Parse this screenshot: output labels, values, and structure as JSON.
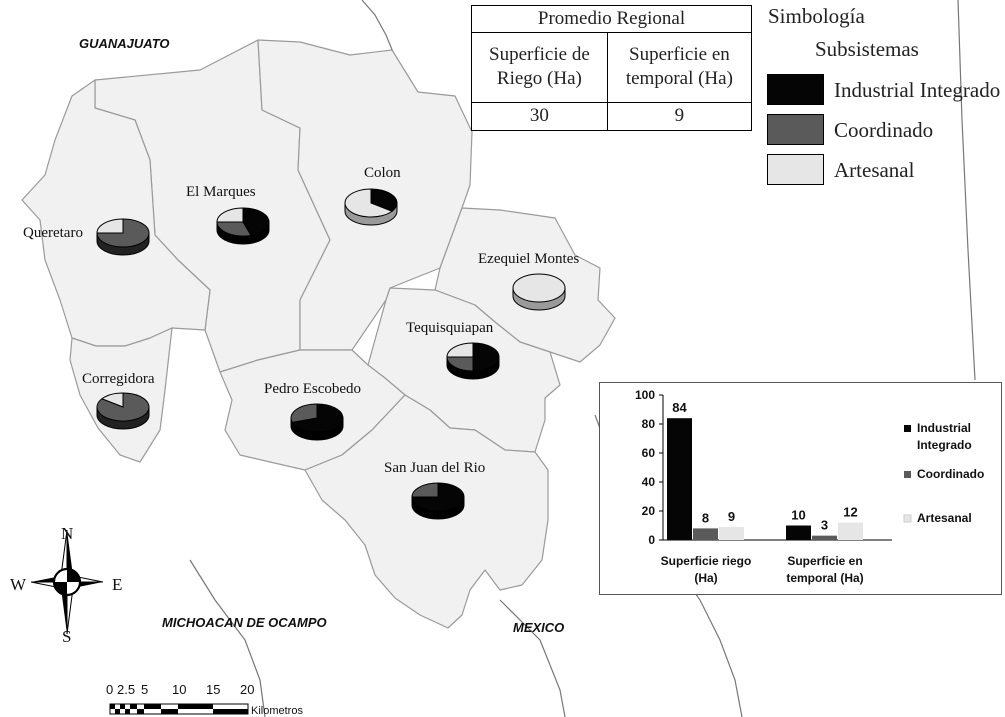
{
  "regions": {
    "guanajuato": "GUANAJUATO",
    "michoacan": "MICHOACAN DE OCAMPO",
    "mexico": "MEXICO"
  },
  "municipalities": [
    {
      "name": "Queretaro",
      "shares": [
        0,
        0.75,
        0.25
      ]
    },
    {
      "name": "El Marques",
      "shares": [
        0.45,
        0.3,
        0.25
      ]
    },
    {
      "name": "Colon",
      "shares": [
        0.35,
        0,
        0.65
      ]
    },
    {
      "name": "Ezequiel Montes",
      "shares": [
        0,
        0,
        1
      ]
    },
    {
      "name": "Tequisquiapan",
      "shares": [
        0.5,
        0.25,
        0.25
      ]
    },
    {
      "name": "Corregidora",
      "shares": [
        0,
        0.85,
        0.15
      ]
    },
    {
      "name": "Pedro Escobedo",
      "shares": [
        0.7,
        0.3,
        0
      ]
    },
    {
      "name": "San Juan del Rio",
      "shares": [
        0.75,
        0.25,
        0
      ]
    }
  ],
  "summary_table": {
    "title": "Promedio Regional",
    "col1_line1": "Superficie de",
    "col1_line2": "Riego (Ha)",
    "col2_line1": "Superficie en",
    "col2_line2": "temporal (Ha)",
    "col1_value": "30",
    "col2_value": "9"
  },
  "legend": {
    "title": "Simbología",
    "subtitle": "Subsistemas",
    "items": [
      {
        "label": "Industrial Integrado",
        "color": "#050505"
      },
      {
        "label": "Coordinado",
        "color": "#5a5a5a"
      },
      {
        "label": "Artesanal",
        "color": "#e6e6e6"
      }
    ]
  },
  "compass": {
    "n": "N",
    "s": "S",
    "e": "E",
    "w": "W"
  },
  "scale_bar": {
    "ticks": [
      "0",
      "2.5",
      "5",
      "10",
      "15",
      "20"
    ],
    "unit": "Kilometros"
  },
  "chart_data": {
    "type": "bar",
    "categories": [
      "Superficie riego (Ha)",
      "Superficie en temporal (Ha)"
    ],
    "category_lines": [
      [
        "Superficie riego",
        "(Ha)"
      ],
      [
        "Superficie en",
        "temporal (Ha)"
      ]
    ],
    "series": [
      {
        "name": "Industrial Integrado",
        "values": [
          84,
          10
        ],
        "color": "#050505"
      },
      {
        "name": "Coordinado",
        "values": [
          8,
          3
        ],
        "color": "#5a5a5a"
      },
      {
        "name": "Artesanal",
        "values": [
          9,
          12
        ],
        "color": "#e6e6e6"
      }
    ],
    "legend_lines": [
      [
        "Industrial",
        "Integrado"
      ],
      [
        "Coordinado"
      ],
      [
        "Artesanal"
      ]
    ],
    "yticks": [
      0,
      20,
      40,
      60,
      80,
      100
    ],
    "ylim": [
      0,
      100
    ],
    "grid": false,
    "legend_position": "right"
  }
}
